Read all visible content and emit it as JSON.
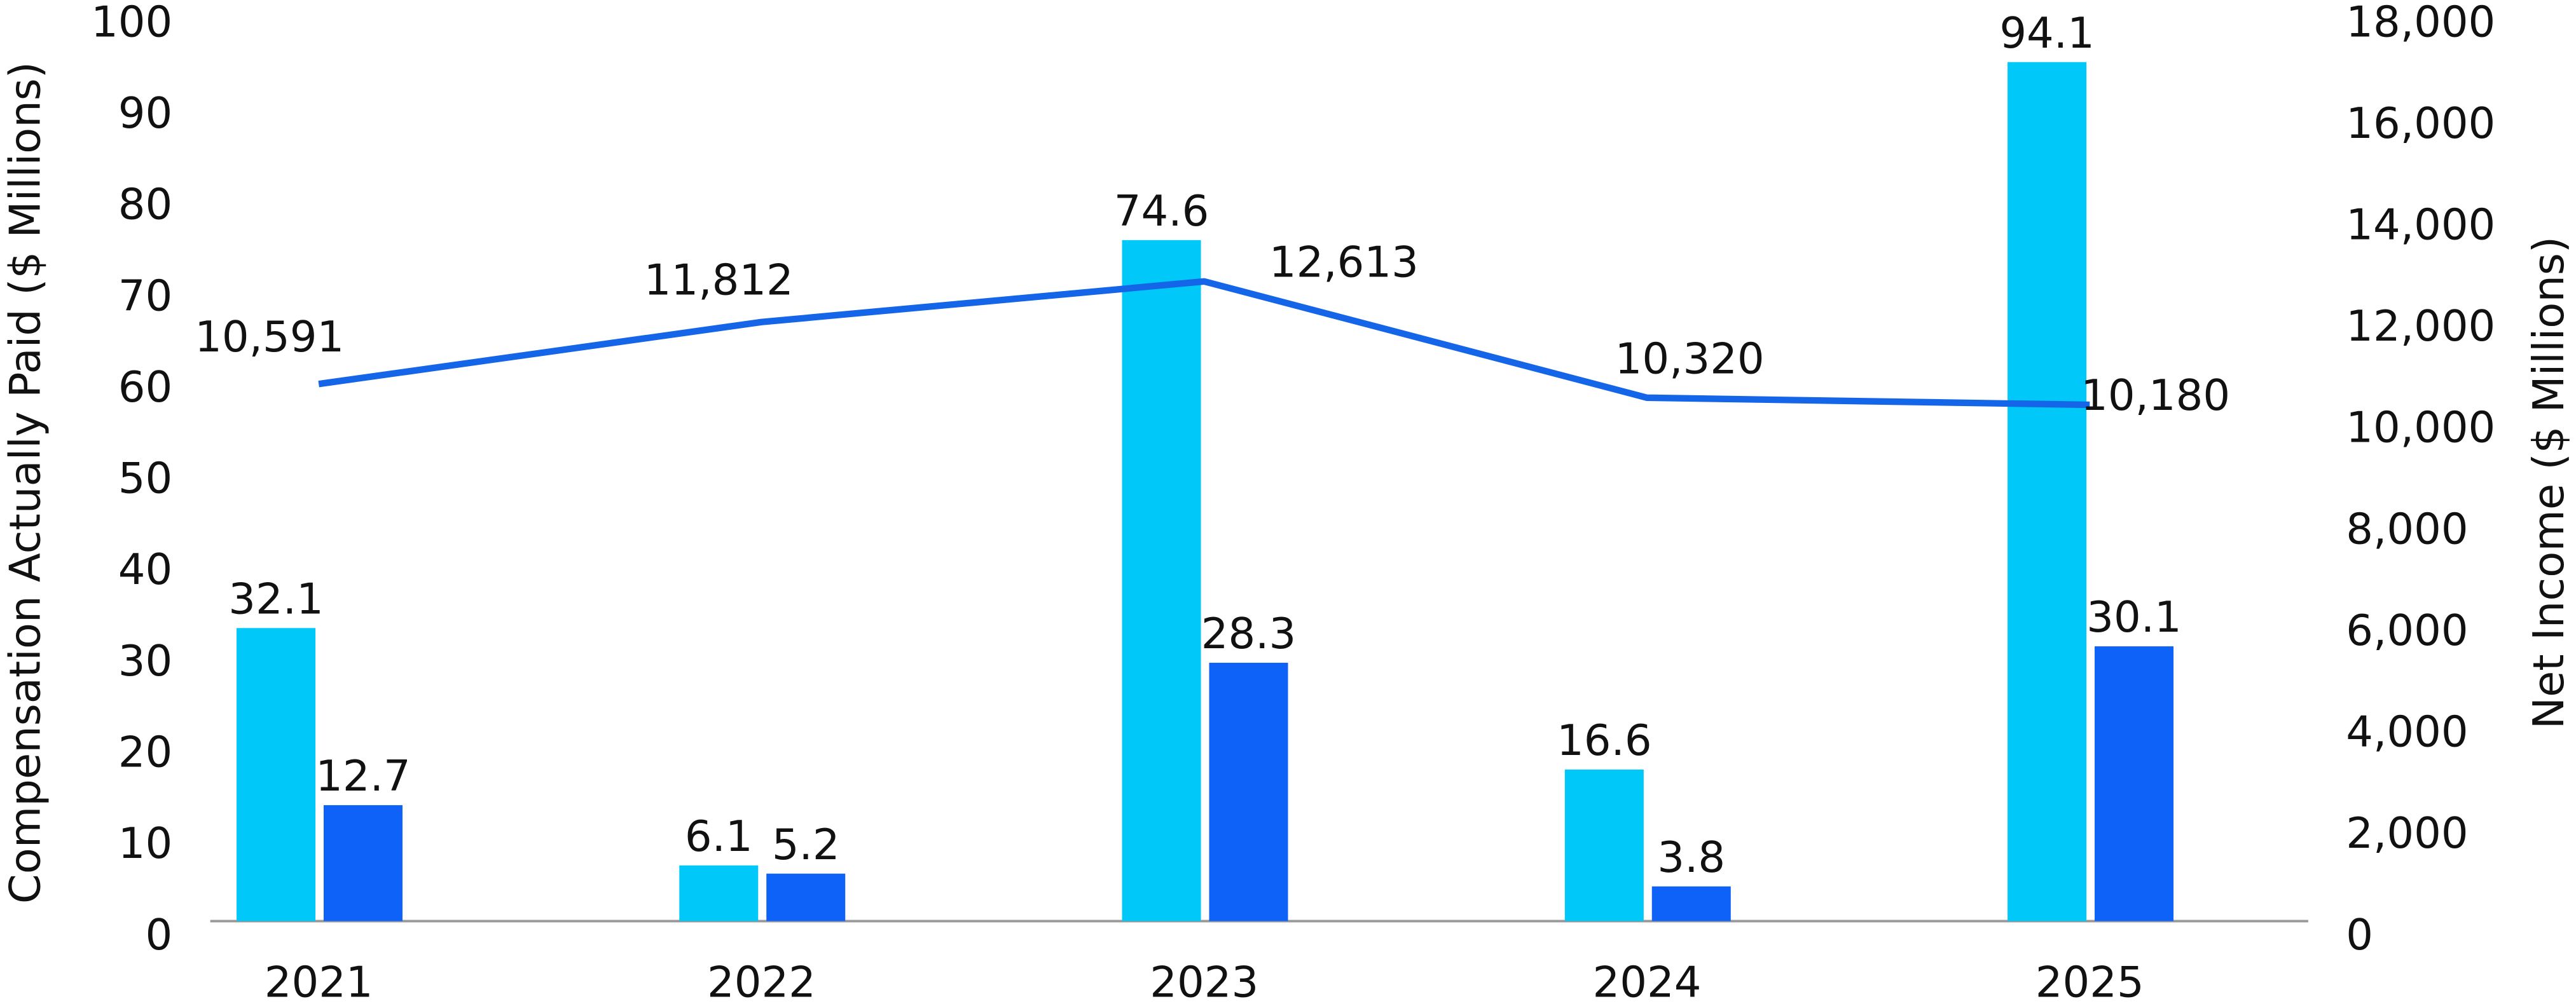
{
  "chart_data": {
    "type": "bar",
    "categories": [
      "2021",
      "2022",
      "2023",
      "2024",
      "2025"
    ],
    "y_label": "Compensation Actually Paid ($ Millions)",
    "y2_label": "Net Income ($ Millions)",
    "ylim": [
      0,
      100
    ],
    "yticks": [
      0,
      10,
      20,
      30,
      40,
      50,
      60,
      70,
      80,
      90,
      100
    ],
    "y2lim": [
      0,
      18000
    ],
    "y2ticks": [
      0,
      {
        "value": 2000,
        "label": "2,000"
      },
      {
        "value": 4000,
        "label": "4,000"
      },
      {
        "value": 6000,
        "label": "6,000"
      },
      {
        "value": 8000,
        "label": "8,000"
      },
      {
        "value": 10000,
        "label": "10,000"
      },
      {
        "value": 12000,
        "label": "12,000"
      },
      {
        "value": 14000,
        "label": "14,000"
      },
      {
        "value": 16000,
        "label": "16,000"
      },
      {
        "value": 18000,
        "label": "18,000"
      }
    ],
    "grid": false,
    "series": [
      {
        "color": "#00c8f8",
        "values": [
          32.1,
          6.1,
          74.6,
          16.6,
          94.1
        ]
      },
      {
        "color": "#0f62f8",
        "values": [
          12.7,
          5.2,
          28.3,
          3.8,
          30.1
        ]
      },
      {
        "type": "line",
        "axis": "y2",
        "color": "#1565e8",
        "values": [
          10591,
          11812,
          12613,
          10320,
          10180
        ],
        "value_labels": [
          "10,591",
          "11,812",
          "12,613",
          "10,320",
          "10,180"
        ]
      }
    ]
  }
}
